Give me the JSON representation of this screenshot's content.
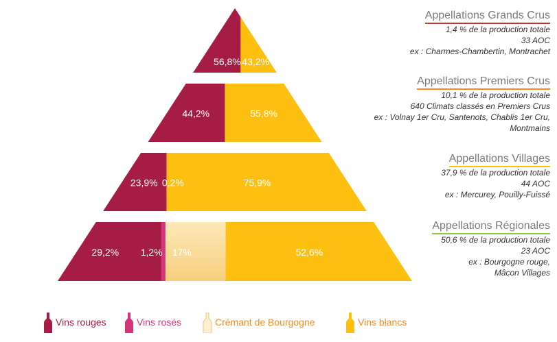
{
  "colors": {
    "rouges": "#a51c45",
    "roses": "#d2357a",
    "cremant": "#fbe3a8",
    "blancs": "#fdc010",
    "cremant_text": "#f28c1f"
  },
  "chart_data": {
    "type": "pyramid",
    "title": "",
    "categories": [
      "Appellations Grands Crus",
      "Appellations Premiers Crus",
      "Appellations Villages",
      "Appellations Régionales"
    ],
    "series": [
      {
        "name": "Vins rouges",
        "values": [
          56.8,
          44.2,
          23.9,
          29.2
        ],
        "labels": [
          "56,8%",
          "44,2%",
          "23,9%",
          "29,2%"
        ]
      },
      {
        "name": "Vins rosés",
        "values": [
          0,
          0,
          0.2,
          1.2
        ],
        "labels": [
          "",
          "",
          "0,2%",
          "1,2%"
        ]
      },
      {
        "name": "Crémant de Bourgogne",
        "values": [
          0,
          0,
          0,
          17
        ],
        "labels": [
          "",
          "",
          "",
          "17%"
        ]
      },
      {
        "name": "Vins blancs",
        "values": [
          43.2,
          55.8,
          75.9,
          52.6
        ],
        "labels": [
          "43,2%",
          "55,8%",
          "75,9%",
          "52,6%"
        ]
      }
    ]
  },
  "tiers": [
    {
      "title": "Appellations Grands Crus",
      "underline": "#c0392b",
      "lines": [
        "1,4 % de la production totale",
        "33 AOC",
        "ex : Charmes-Chambertin, Montrachet"
      ]
    },
    {
      "title": "Appellations Premiers Crus",
      "underline": "#f28c1f",
      "lines": [
        "10,1 % de la production totale",
        "640 Climats classés en Premiers Crus",
        "ex : Volnay 1er Cru, Santenots, Chablis 1er Cru,",
        "Montmains"
      ]
    },
    {
      "title": "Appellations Villages",
      "underline": "#fdc010",
      "lines": [
        "37,9 % de la production totale",
        "44 AOC",
        "ex : Mercurey, Pouilly-Fuissé"
      ]
    },
    {
      "title": "Appellations Régionales",
      "underline": "#8cc63f",
      "lines": [
        "50,6 % de la production totale",
        "23 AOC",
        "ex : Bourgogne rouge,",
        "Mâcon Villages"
      ]
    }
  ],
  "legend": [
    {
      "label": "Vins rouges",
      "icon": "red-wine-bottle-icon",
      "color": "#a51c45"
    },
    {
      "label": "Vins rosés",
      "icon": "rose-wine-bottle-icon",
      "color": "#d2357a"
    },
    {
      "label": "Crémant de Bourgogne",
      "icon": "cremant-bottle-icon",
      "color": "#f28c1f"
    },
    {
      "label": "Vins blancs",
      "icon": "white-wine-bottle-icon",
      "color": "#f28c1f"
    }
  ]
}
